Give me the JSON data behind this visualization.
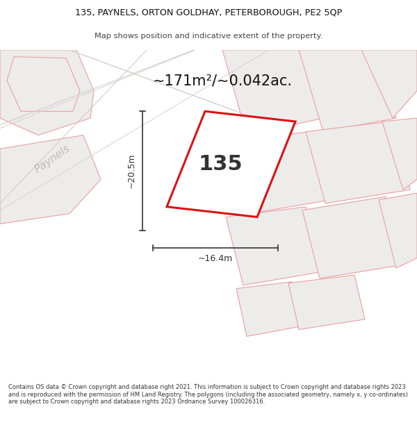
{
  "title_line1": "135, PAYNELS, ORTON GOLDHAY, PETERBOROUGH, PE2 5QP",
  "title_line2": "Map shows position and indicative extent of the property.",
  "area_text": "~171m²/~0.042ac.",
  "label_135": "135",
  "dim_height": "~20.5m",
  "dim_width": "~16.4m",
  "street_label": "Paynels",
  "footer": "Contains OS data © Crown copyright and database right 2021. This information is subject to Crown copyright and database rights 2023 and is reproduced with the permission of HM Land Registry. The polygons (including the associated geometry, namely x, y co-ordinates) are subject to Crown copyright and database rights 2023 Ordnance Survey 100026316.",
  "bg_color": "#ffffff",
  "map_bg": "#ffffff",
  "plot_fill": "#ffffff",
  "plot_edge": "#dd1111",
  "neighbor_fill": "#eeebeb",
  "neighbor_edge": "#e8a0a0",
  "road_line_color": "#d8d0d0",
  "dim_color": "#333333",
  "text_color": "#111111",
  "street_color": "#bbbbbb",
  "area_color": "#111111"
}
